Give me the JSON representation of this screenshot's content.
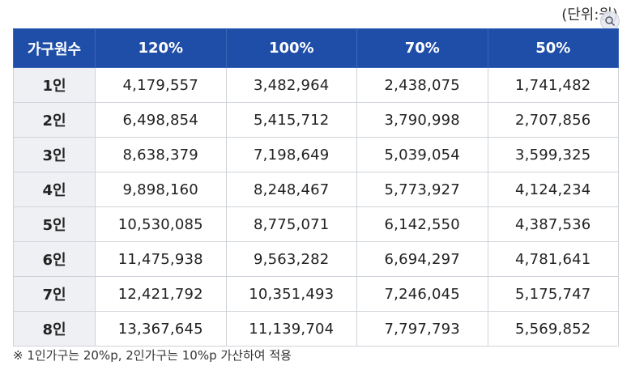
{
  "unit_label": "(단위:원)",
  "table": {
    "headers": [
      "가구원수",
      "120%",
      "100%",
      "70%",
      "50%"
    ],
    "rows": [
      {
        "label": "1인",
        "values": [
          "4,179,557",
          "3,482,964",
          "2,438,075",
          "1,741,482"
        ]
      },
      {
        "label": "2인",
        "values": [
          "6,498,854",
          "5,415,712",
          "3,790,998",
          "2,707,856"
        ]
      },
      {
        "label": "3인",
        "values": [
          "8,638,379",
          "7,198,649",
          "5,039,054",
          "3,599,325"
        ]
      },
      {
        "label": "4인",
        "values": [
          "9,898,160",
          "8,248,467",
          "5,773,927",
          "4,124,234"
        ]
      },
      {
        "label": "5인",
        "values": [
          "10,530,085",
          "8,775,071",
          "6,142,550",
          "4,387,536"
        ]
      },
      {
        "label": "6인",
        "values": [
          "11,475,938",
          "9,563,282",
          "6,694,297",
          "4,781,641"
        ]
      },
      {
        "label": "7인",
        "values": [
          "12,421,792",
          "10,351,493",
          "7,246,045",
          "5,175,747"
        ]
      },
      {
        "label": "8인",
        "values": [
          "13,367,645",
          "11,139,704",
          "7,797,793",
          "5,569,852"
        ]
      }
    ]
  },
  "note": "※ 1인가구는 20%p, 2인가구는 10%p 가산하여 적용",
  "colors": {
    "header_bg": "#1f4ea8",
    "label_bg": "#eef0f3"
  },
  "icons": {
    "zoom": "zoom-icon"
  }
}
